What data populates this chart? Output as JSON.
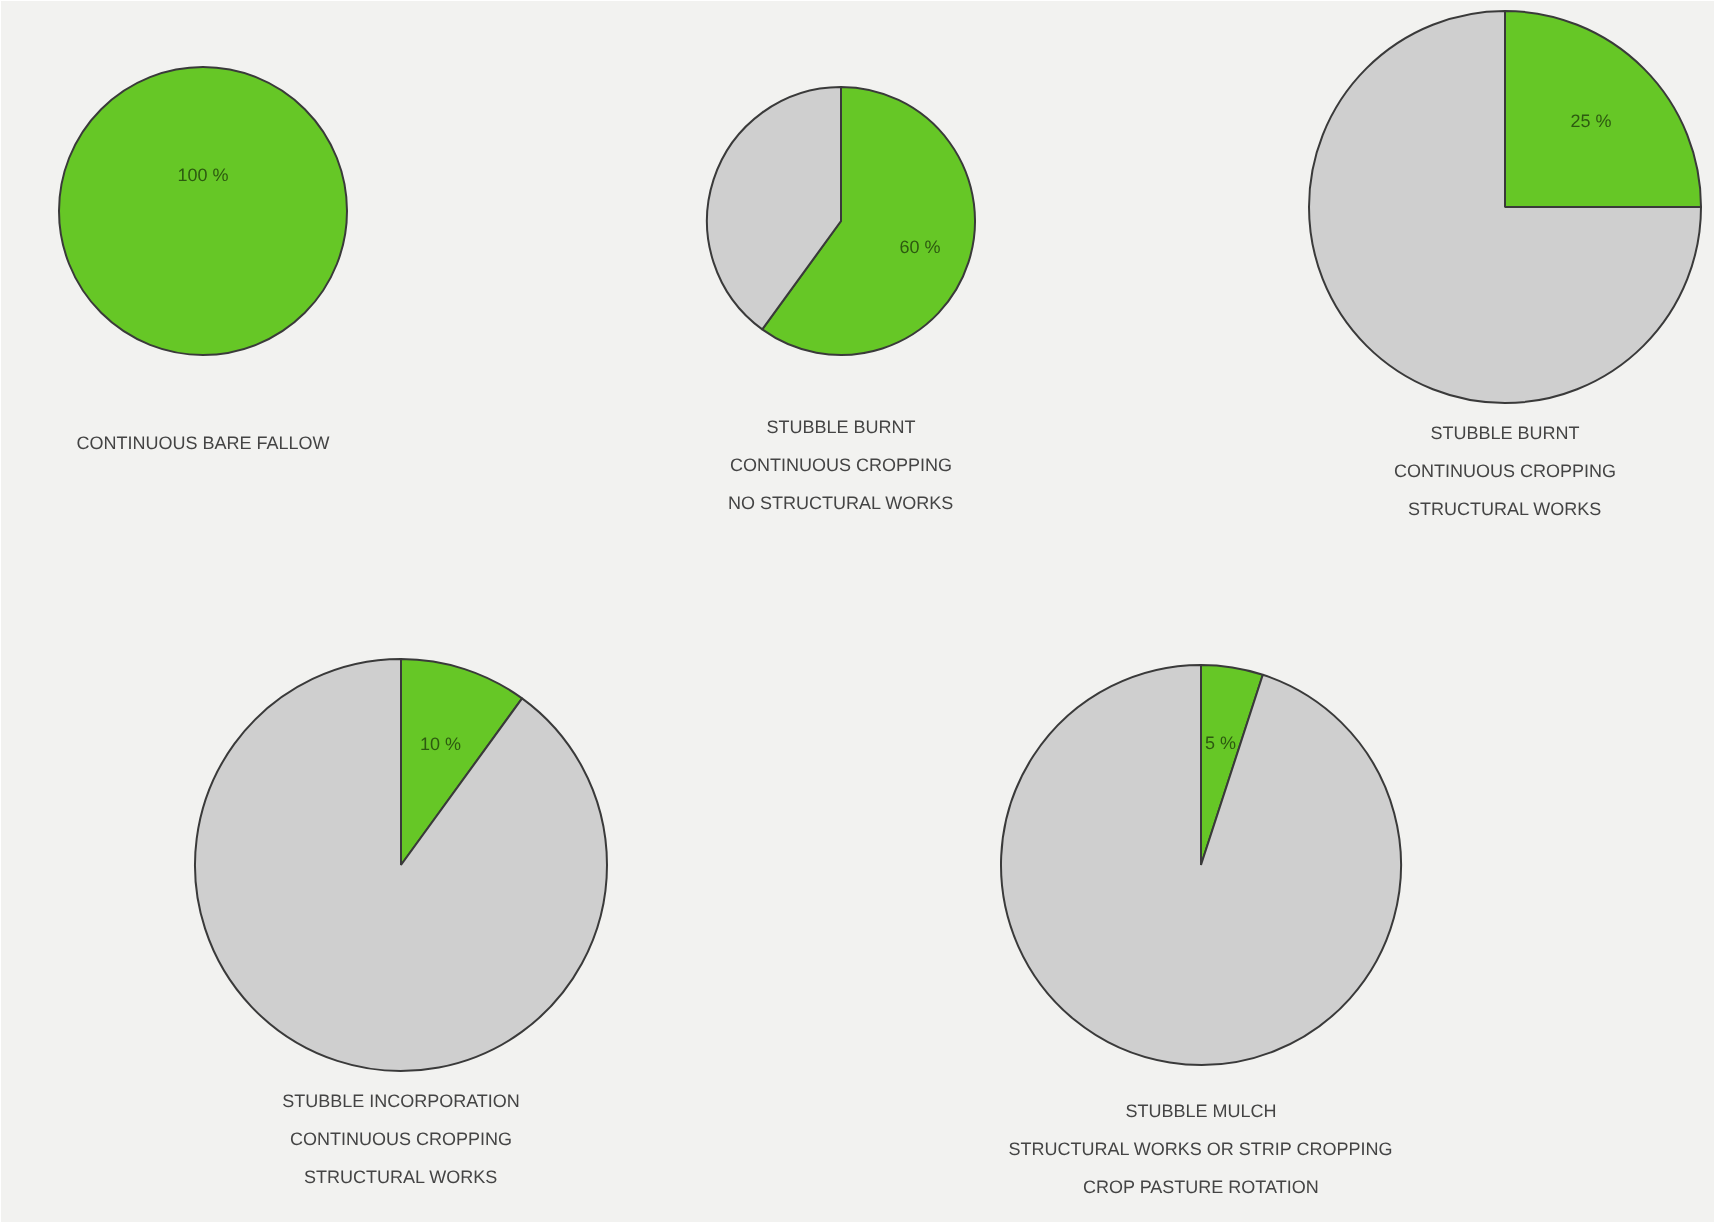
{
  "chart_data": [
    {
      "type": "pie",
      "title": "CONTINUOUS BARE FALLOW",
      "categories": [
        null
      ],
      "values": [
        100
      ],
      "colors": [
        "#66c726"
      ],
      "value_labels": [
        "100 %"
      ]
    },
    {
      "type": "pie",
      "title": "STUBBLE BURNT\nCONTINUOUS CROPPING\nNO STRUCTURAL WORKS",
      "categories": [
        null,
        null
      ],
      "values": [
        60,
        40
      ],
      "colors": [
        "#66c726",
        "#cfcfcf"
      ],
      "value_labels": [
        "60 %",
        null
      ]
    },
    {
      "type": "pie",
      "title": "STUBBLE BURNT\nCONTINUOUS CROPPING\nSTRUCTURAL WORKS",
      "categories": [
        null,
        null
      ],
      "values": [
        25,
        75
      ],
      "colors": [
        "#66c726",
        "#cfcfcf"
      ],
      "value_labels": [
        "25 %",
        null
      ]
    },
    {
      "type": "pie",
      "title": "STUBBLE INCORPORATION\nCONTINUOUS CROPPING\nSTRUCTURAL WORKS",
      "categories": [
        null,
        null
      ],
      "values": [
        10,
        90
      ],
      "colors": [
        "#66c726",
        "#cfcfcf"
      ],
      "value_labels": [
        "10 %",
        null
      ]
    },
    {
      "type": "pie",
      "title": "STUBBLE MULCH\nSTRUCTURAL WORKS OR STRIP CROPPING\nCROP PASTURE ROTATION",
      "categories": [
        null,
        null
      ],
      "values": [
        5,
        95
      ],
      "colors": [
        "#66c726",
        "#cfcfcf"
      ],
      "value_labels": [
        "5 %",
        null
      ]
    }
  ]
}
